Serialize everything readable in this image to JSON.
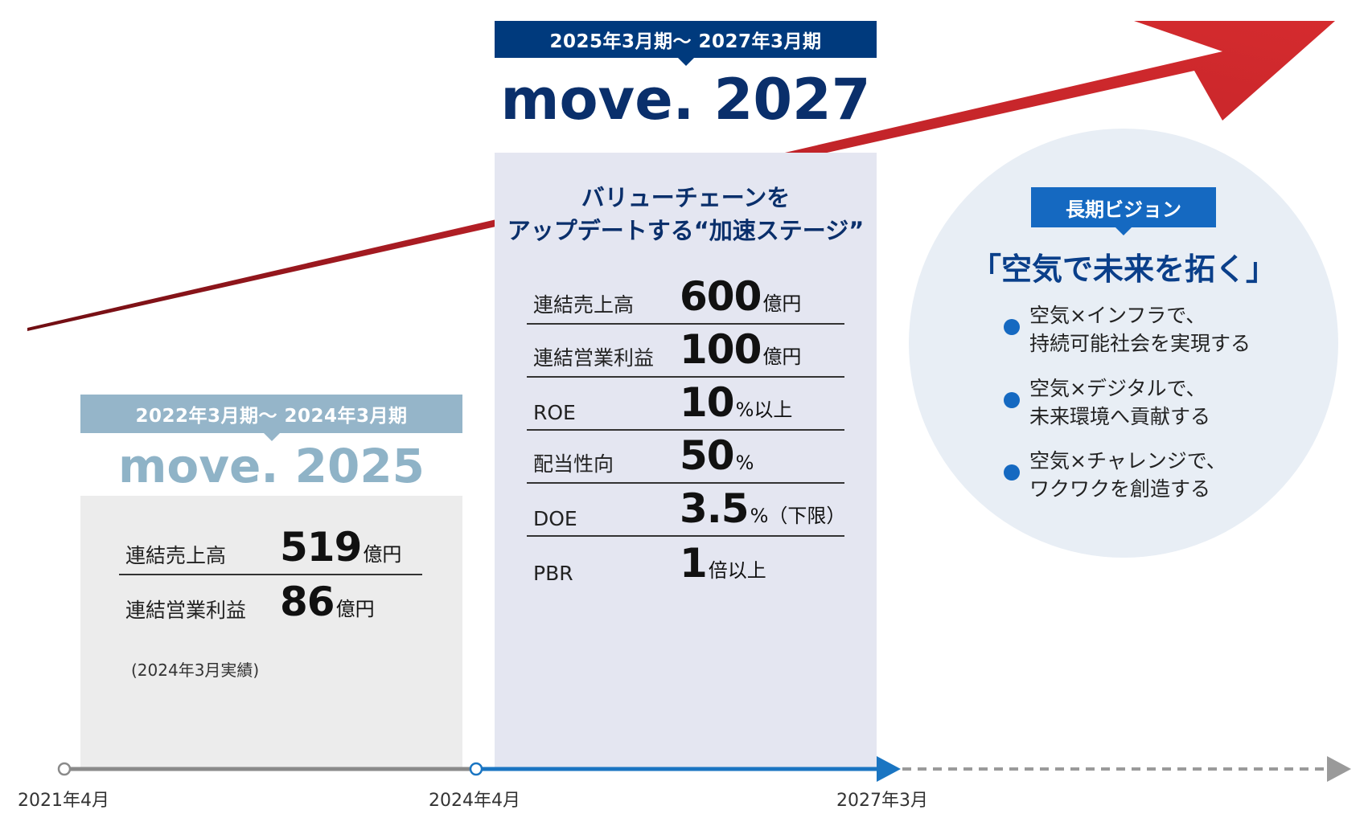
{
  "phase1": {
    "period": "2022年3月期～ 2024年3月期",
    "name": "move. 2025",
    "kpis": [
      {
        "label": "連結売上高",
        "value": "519",
        "unit": "億円"
      },
      {
        "label": "連結営業利益",
        "value": "86",
        "unit": "億円"
      }
    ],
    "note": "(2024年3月実績)"
  },
  "phase2": {
    "period": "2025年3月期～ 2027年3月期",
    "name": "move. 2027",
    "subtitle_line1": "バリューチェーンを",
    "subtitle_line2": "アップデートする“加速ステージ”",
    "kpis": [
      {
        "label": "連結売上高",
        "value": "600",
        "unit": "億円"
      },
      {
        "label": "連結営業利益",
        "value": "100",
        "unit": "億円"
      },
      {
        "label": "ROE",
        "value": "10",
        "unit": "%以上"
      },
      {
        "label": "配当性向",
        "value": "50",
        "unit": "%"
      },
      {
        "label": "DOE",
        "value": "3.5",
        "unit": "%（下限）"
      },
      {
        "label": "PBR",
        "value": "1",
        "unit": "倍以上"
      }
    ]
  },
  "vision": {
    "label": "長期ビジョン",
    "title": "「空気で未来を拓く」",
    "items": [
      {
        "line1": "空気×インフラで、",
        "line2": "持続可能社会を実現する"
      },
      {
        "line1": "空気×デジタルで、",
        "line2": "未来環境へ貢献する"
      },
      {
        "line1": "空気×チャレンジで、",
        "line2": "ワクワクを創造する"
      }
    ]
  },
  "timeline": {
    "labels": [
      "2021年4月",
      "2024年4月",
      "2027年3月"
    ]
  },
  "colors": {
    "arrow": "#c4262b",
    "phase1_accent": "#95b5c9",
    "phase2_accent": "#003a7d",
    "vision_accent": "#1569c1",
    "timeline_past": "#8a8a8a",
    "timeline_current": "#1a75c2",
    "timeline_future": "#9a9a9a"
  }
}
